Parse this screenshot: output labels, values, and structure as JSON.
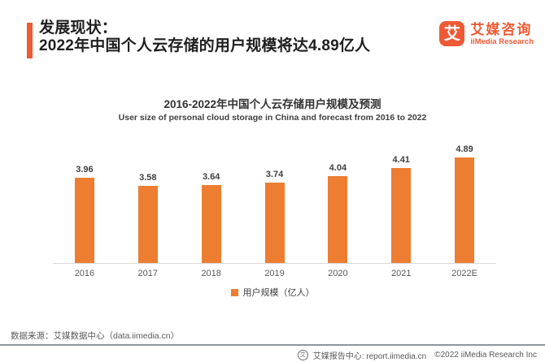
{
  "theme": {
    "accent_orange_red": "#EE5A35",
    "bar_orange": "#ED7D31",
    "text_dark": "#333333",
    "text_gray": "#595959"
  },
  "header": {
    "title_line1": "发展现状：",
    "title_line2": "2022年中国个人云存储的用户规模将达4.89亿人"
  },
  "logo": {
    "icon_glyph": "艾",
    "name_cn": "艾媒咨询",
    "name_en": "iiMedia Research"
  },
  "chart_data": {
    "type": "bar",
    "title": "2016-2022年中国个人云存储用户规模及预测",
    "subtitle": "User size of personal cloud storage in China and forecast from 2016 to 2022",
    "categories": [
      "2016",
      "2017",
      "2018",
      "2019",
      "2020",
      "2021",
      "2022E"
    ],
    "values": [
      3.96,
      3.58,
      3.64,
      3.74,
      4.04,
      4.41,
      4.89
    ],
    "legend": [
      "用户规模（亿人）"
    ],
    "legend_position": "bottom",
    "grid": false,
    "ylim": [
      0,
      5.2
    ],
    "bar_color": "#ED7D31",
    "value_labels_shown": true
  },
  "footer": {
    "source_text": "数据来源：艾媒数据中心（data.iimedia.cn）",
    "icon_glyph": "艾",
    "report_center": "艾媒报告中心: report.iimedia.cn",
    "copyright": "©2022 iiMedia Research Inc"
  }
}
